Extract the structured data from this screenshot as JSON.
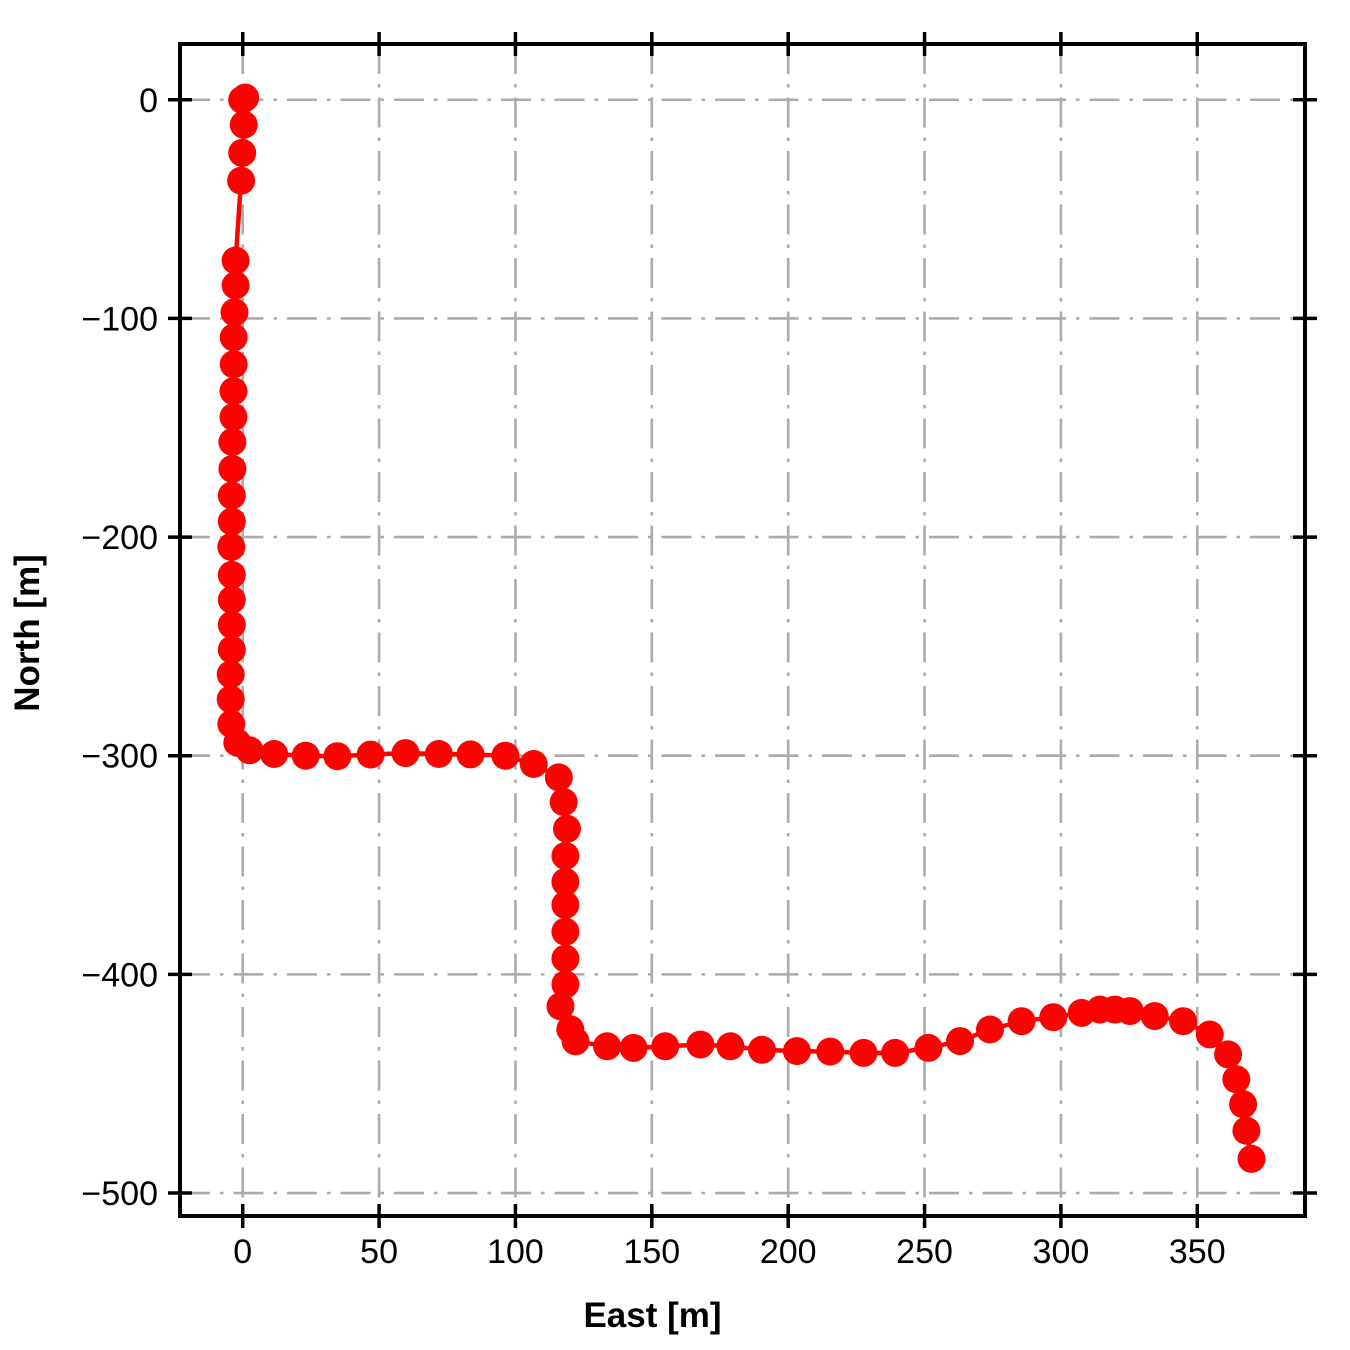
{
  "chart_data": {
    "type": "line",
    "title": "",
    "xlabel": "East [m]",
    "ylabel": "North [m]",
    "xlim": [
      -23,
      389.5
    ],
    "ylim": [
      -510.5,
      25.5
    ],
    "x_ticks": [
      0,
      50,
      100,
      150,
      200,
      250,
      300,
      350
    ],
    "y_ticks": [
      0,
      -100,
      -200,
      -300,
      -400,
      -500
    ],
    "grid": {
      "on": true,
      "linestyle": "dashdot",
      "color": "#ababab"
    },
    "legend": {
      "visible": false
    },
    "colors": {
      "marker": "#f90400",
      "line": "#f90400",
      "spine": "#000000",
      "tick_label": "#000000",
      "background": "#ffffff"
    },
    "series": [
      {
        "name": "trajectory",
        "marker": "circle",
        "points": [
          [
            0.9,
            1.0
          ],
          [
            -0.2,
            0.0
          ],
          [
            0.4,
            -11.4
          ],
          [
            -0.2,
            -24.3
          ],
          [
            -0.6,
            -37.0
          ],
          [
            -2.6,
            -73.5
          ],
          [
            -2.6,
            -84.9
          ],
          [
            -3.0,
            -97.2
          ],
          [
            -3.3,
            -108.7
          ],
          [
            -3.3,
            -121.0
          ],
          [
            -3.4,
            -133.3
          ],
          [
            -3.4,
            -145.1
          ],
          [
            -3.8,
            -156.5
          ],
          [
            -3.8,
            -168.8
          ],
          [
            -4.0,
            -181.0
          ],
          [
            -4.0,
            -192.9
          ],
          [
            -4.2,
            -204.5
          ],
          [
            -4.0,
            -217.3
          ],
          [
            -4.0,
            -228.7
          ],
          [
            -4.0,
            -240.1
          ],
          [
            -4.0,
            -251.5
          ],
          [
            -4.4,
            -262.8
          ],
          [
            -4.4,
            -274.2
          ],
          [
            -4.2,
            -285.5
          ],
          [
            -2.0,
            -294.0
          ],
          [
            2.5,
            -297.5
          ],
          [
            11.5,
            -299.2
          ],
          [
            23.1,
            -300.0
          ],
          [
            34.7,
            -300.2
          ],
          [
            46.9,
            -299.5
          ],
          [
            59.7,
            -298.8
          ],
          [
            71.9,
            -299.2
          ],
          [
            83.5,
            -299.4
          ],
          [
            96.3,
            -300.0
          ],
          [
            106.7,
            -303.8
          ],
          [
            115.9,
            -309.9
          ],
          [
            117.7,
            -321.2
          ],
          [
            118.9,
            -333.4
          ],
          [
            118.3,
            -345.8
          ],
          [
            118.3,
            -357.7
          ],
          [
            118.3,
            -368.2
          ],
          [
            118.3,
            -380.5
          ],
          [
            118.3,
            -392.8
          ],
          [
            118.3,
            -404.6
          ],
          [
            116.5,
            -414.6
          ],
          [
            120.1,
            -425.1
          ],
          [
            122.0,
            -430.6
          ],
          [
            133.6,
            -432.9
          ],
          [
            143.3,
            -433.6
          ],
          [
            154.9,
            -432.9
          ],
          [
            167.8,
            -432.1
          ],
          [
            178.8,
            -432.9
          ],
          [
            190.4,
            -434.5
          ],
          [
            203.2,
            -435.1
          ],
          [
            215.4,
            -435.3
          ],
          [
            227.6,
            -435.9
          ],
          [
            239.2,
            -435.9
          ],
          [
            251.4,
            -433.6
          ],
          [
            263.0,
            -430.5
          ],
          [
            274.0,
            -425.2
          ],
          [
            285.6,
            -421.4
          ],
          [
            297.2,
            -419.6
          ],
          [
            307.6,
            -417.6
          ],
          [
            314.3,
            -416.1
          ],
          [
            319.8,
            -416.1
          ],
          [
            325.3,
            -416.8
          ],
          [
            334.4,
            -419.1
          ],
          [
            344.8,
            -421.4
          ],
          [
            354.6,
            -427.5
          ],
          [
            361.3,
            -436.6
          ],
          [
            364.3,
            -448.0
          ],
          [
            366.8,
            -459.4
          ],
          [
            368.0,
            -471.5
          ],
          [
            369.9,
            -484.4
          ]
        ]
      }
    ]
  }
}
